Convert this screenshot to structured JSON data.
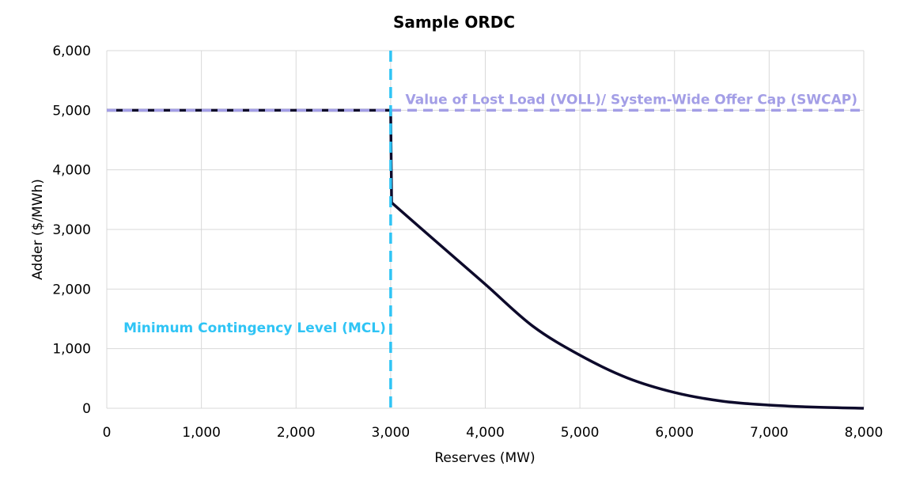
{
  "chart_data": {
    "type": "line",
    "title": "Sample ORDC",
    "xlabel": "Reserves (MW)",
    "ylabel": "Adder ($/MWh)",
    "xlim": [
      0,
      8000
    ],
    "ylim": [
      0,
      6000
    ],
    "xticks": [
      "0",
      "1,000",
      "2,000",
      "3,000",
      "4,000",
      "5,000",
      "6,000",
      "7,000",
      "8,000"
    ],
    "yticks": [
      "0",
      "1,000",
      "2,000",
      "3,000",
      "4,000",
      "5,000",
      "6,000"
    ],
    "grid": true,
    "series": [
      {
        "color": "#0d0a2b",
        "style": "solid",
        "points": [
          [
            0,
            5000
          ],
          [
            3000,
            5000
          ],
          [
            3010,
            3450
          ],
          [
            3500,
            2770
          ],
          [
            4000,
            2080
          ],
          [
            4500,
            1380
          ],
          [
            5000,
            890
          ],
          [
            5500,
            510
          ],
          [
            6000,
            265
          ],
          [
            6500,
            120
          ],
          [
            7000,
            53
          ],
          [
            7500,
            18
          ],
          [
            8000,
            0
          ]
        ]
      }
    ],
    "annotations": [
      {
        "type": "hline",
        "y": 5000,
        "color": "#a39ee6",
        "style": "dashed",
        "label": "Value of Lost Load (VOLL)/ System-Wide Offer Cap (SWCAP)"
      },
      {
        "type": "vline",
        "x": 3000,
        "color": "#2fc4f5",
        "style": "dashed",
        "label": "Minimum Contingency Level (MCL)"
      }
    ]
  }
}
